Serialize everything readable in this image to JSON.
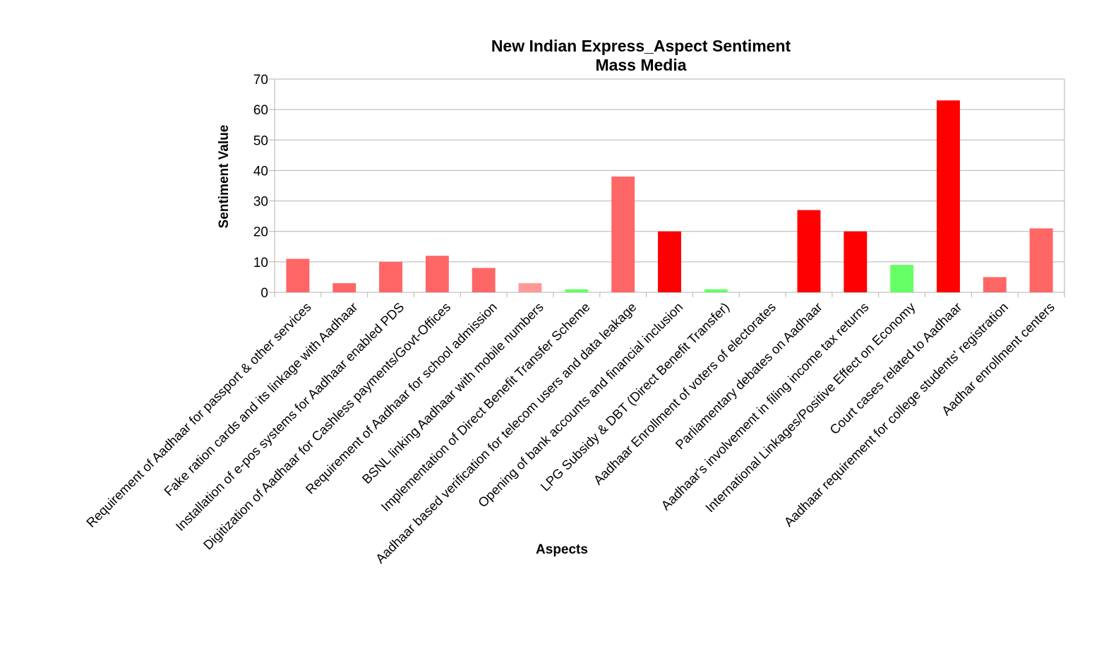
{
  "chart_data": {
    "type": "bar",
    "title": "New Indian Express_Aspect Sentiment",
    "subtitle": "Mass Media",
    "xlabel": "Aspects",
    "ylabel": "Sentiment Value",
    "ylim": [
      0,
      70
    ],
    "yticks": [
      "0",
      "10",
      "20",
      "30",
      "40",
      "50",
      "60",
      "70"
    ],
    "grid": true,
    "legend": "none",
    "categories": [
      "Requirement of Aadhaar for passport & other services",
      "Fake ration cards and its linkage with Aadhaar",
      "Installation of e-pos systems for Aadhaar enabled PDS",
      "Digitization of Aadhaar for Cashless payments/Govt-Offices",
      "Requirement of Aadhaar for school admission",
      "BSNL linking Aadhaar with mobile numbers",
      "Implementation of Direct Benefit Transfer Scheme",
      "Aadhaar based verification for telecom users and data leakage",
      "Opening of bank accounts and financial inclusion",
      "LPG Subsidy & DBT (Direct Benefit Transfer)",
      "Aadhaar Enrollment of voters of electorates",
      "Parliamentary debates on Aadhaar",
      "Aadhaar's involvement in filing income tax returns",
      "International Linkages/Positive Effect on Economy",
      "Court cases related to Aadhaar",
      "Aadhaar requirement for college students' registration",
      "Aadhar enrollment centers"
    ],
    "values": [
      11,
      3,
      10,
      12,
      8,
      3,
      1,
      38,
      20,
      1,
      0,
      27,
      20,
      9,
      63,
      5,
      21
    ],
    "colors": [
      "#ff6666",
      "#ff6666",
      "#ff6666",
      "#ff6666",
      "#ff6666",
      "#ff9999",
      "#66ff66",
      "#ff6666",
      "#ff0000",
      "#66ff66",
      "#ff6666",
      "#ff0000",
      "#ff0000",
      "#66ff66",
      "#ff0000",
      "#ff6666",
      "#ff6666"
    ]
  }
}
